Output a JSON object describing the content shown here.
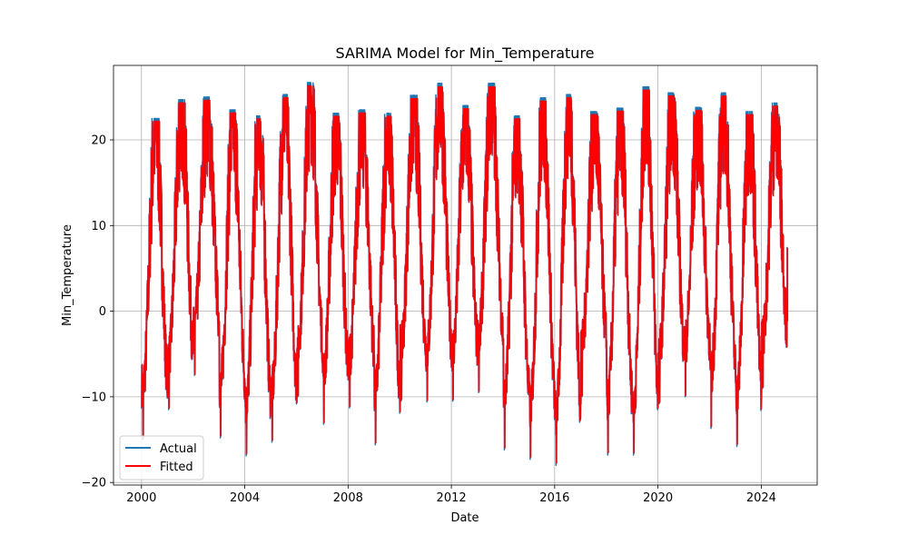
{
  "chart_data": {
    "type": "line",
    "title": "SARIMA Model for Min_Temperature",
    "xlabel": "Date",
    "ylabel": "Min_Temperature",
    "xlim": [
      "1998-12",
      "2026-03"
    ],
    "ylim": [
      -20.3,
      28.7
    ],
    "x_ticks": [
      "2000",
      "2004",
      "2008",
      "2012",
      "2016",
      "2020",
      "2024"
    ],
    "y_ticks": [
      -20,
      -10,
      0,
      10,
      20
    ],
    "grid": true,
    "legend_position": "lower left",
    "x_range": [
      "2000-01",
      "2025-01"
    ],
    "series": [
      {
        "name": "Actual",
        "color": "#1f77b4",
        "description_values": "daily minimum temperature, seasonal oscillation between winter lows and summer highs",
        "annual_peaks": [
          {
            "year": 2000,
            "max": 22.5,
            "min": -15.0
          },
          {
            "year": 2001,
            "max": 24.7,
            "min": -11.5
          },
          {
            "year": 2002,
            "max": 25.0,
            "min": -7.5
          },
          {
            "year": 2003,
            "max": 23.5,
            "min": -14.8
          },
          {
            "year": 2004,
            "max": 22.8,
            "min": -16.9
          },
          {
            "year": 2005,
            "max": 25.3,
            "min": -15.3
          },
          {
            "year": 2006,
            "max": 26.7,
            "min": -10.0
          },
          {
            "year": 2007,
            "max": 23.1,
            "min": -13.2
          },
          {
            "year": 2008,
            "max": 23.5,
            "min": -11.3
          },
          {
            "year": 2009,
            "max": 23.1,
            "min": -15.6
          },
          {
            "year": 2010,
            "max": 25.2,
            "min": -10.5
          },
          {
            "year": 2011,
            "max": 26.6,
            "min": -10.6
          },
          {
            "year": 2012,
            "max": 24.0,
            "min": -10.5
          },
          {
            "year": 2013,
            "max": 26.6,
            "min": -9.5
          },
          {
            "year": 2014,
            "max": 22.8,
            "min": -16.2
          },
          {
            "year": 2015,
            "max": 24.9,
            "min": -17.3
          },
          {
            "year": 2016,
            "max": 25.3,
            "min": -18.0
          },
          {
            "year": 2017,
            "max": 23.3,
            "min": -10.0
          },
          {
            "year": 2018,
            "max": 23.7,
            "min": -16.8
          },
          {
            "year": 2019,
            "max": 26.2,
            "min": -16.8
          },
          {
            "year": 2020,
            "max": 25.5,
            "min": -10.8
          },
          {
            "year": 2021,
            "max": 23.8,
            "min": -10.0
          },
          {
            "year": 2022,
            "max": 25.5,
            "min": -13.7
          },
          {
            "year": 2023,
            "max": 23.3,
            "min": -15.8
          },
          {
            "year": 2024,
            "max": 24.3,
            "min": -9.0
          }
        ],
        "end_value": 7.5
      },
      {
        "name": "Fitted",
        "color": "#ff0000",
        "tracks": "Actual"
      }
    ]
  }
}
